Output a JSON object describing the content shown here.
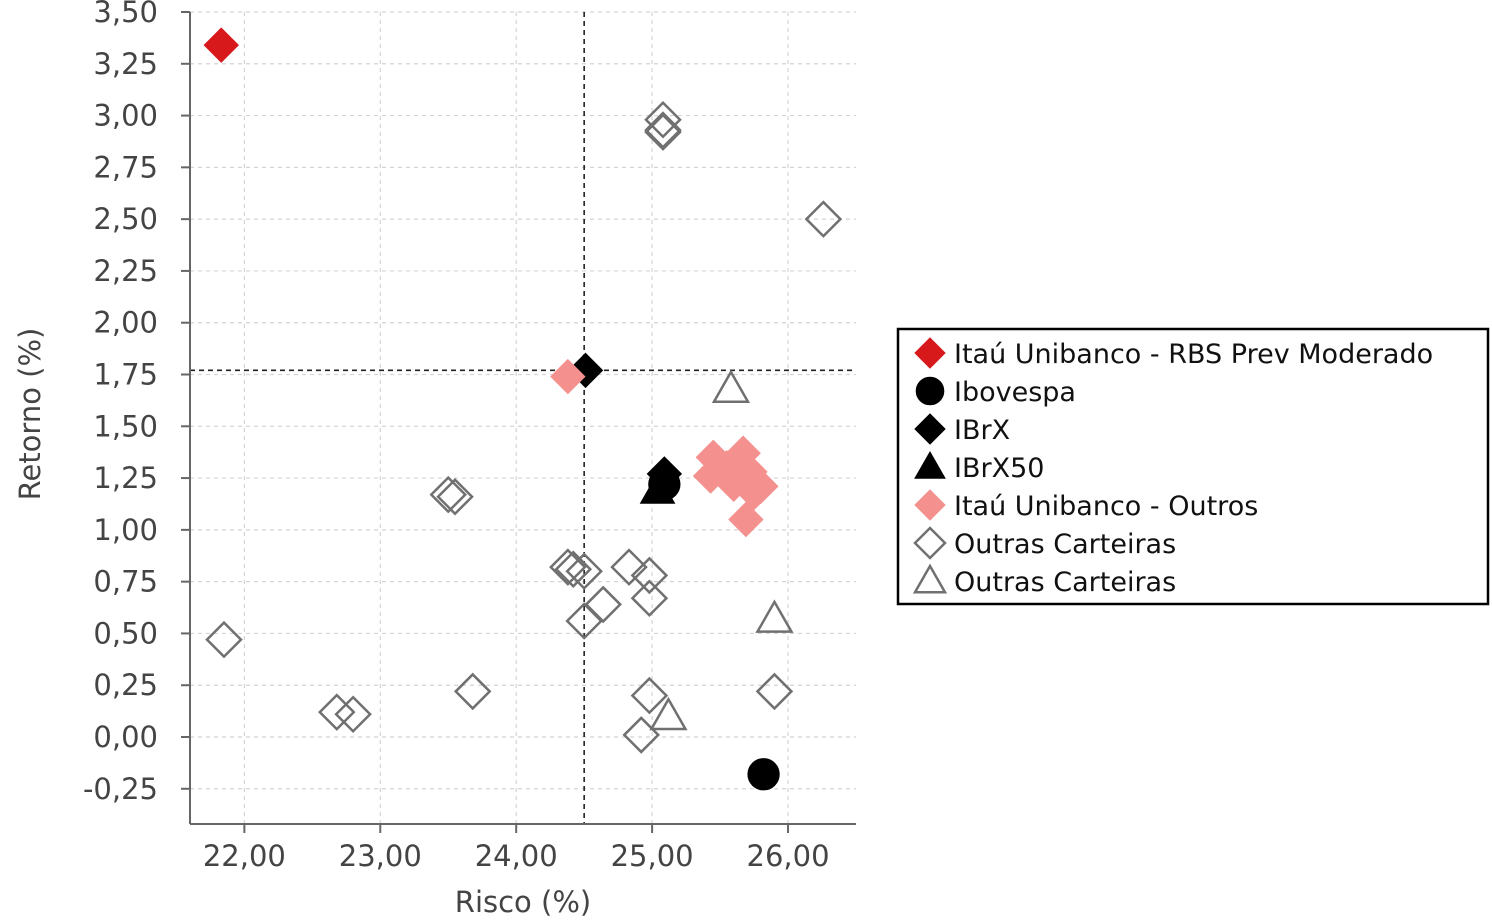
{
  "chart_data": {
    "type": "scatter",
    "title": "",
    "xlabel": "Risco (%)",
    "ylabel": "Retorno (%)",
    "xlim": [
      21.6,
      26.5
    ],
    "ylim": [
      -0.42,
      3.5
    ],
    "xticks": [
      22,
      23,
      24,
      25,
      26
    ],
    "xtick_labels": [
      "22,00",
      "23,00",
      "24,00",
      "25,00",
      "26,00"
    ],
    "yticks": [
      -0.25,
      0,
      0.25,
      0.5,
      0.75,
      1.0,
      1.25,
      1.5,
      1.75,
      2.0,
      2.25,
      2.5,
      2.75,
      3.0,
      3.25,
      3.5
    ],
    "ytick_labels": [
      "-0,25",
      "0,00",
      "0,25",
      "0,50",
      "0,75",
      "1,00",
      "1,25",
      "1,50",
      "1,75",
      "2,00",
      "2,25",
      "2,50",
      "2,75",
      "3,00",
      "3,25",
      "3,50"
    ],
    "grid": true,
    "reference_lines": {
      "x": 24.5,
      "y": 1.77
    },
    "legend_position": "right",
    "series": [
      {
        "name": "Itaú Unibanco - RBS Prev Moderado",
        "marker": "diamond",
        "filled": true,
        "color": "#d7191c",
        "points": [
          [
            21.83,
            3.34
          ]
        ]
      },
      {
        "name": "Ibovespa",
        "marker": "circle",
        "filled": true,
        "color": "#000000",
        "points": [
          [
            25.82,
            -0.18
          ],
          [
            25.09,
            1.22
          ]
        ]
      },
      {
        "name": "IBrX",
        "marker": "diamond",
        "filled": true,
        "color": "#000000",
        "points": [
          [
            24.51,
            1.77
          ],
          [
            25.09,
            1.27
          ]
        ]
      },
      {
        "name": "IBrX50",
        "marker": "triangle",
        "filled": true,
        "color": "#000000",
        "points": [
          [
            25.04,
            1.19
          ]
        ]
      },
      {
        "name": "Itaú Unibanco - Outros",
        "marker": "diamond",
        "filled": true,
        "color": "#f4918f",
        "points": [
          [
            24.38,
            1.74
          ],
          [
            25.45,
            1.35
          ],
          [
            25.43,
            1.26
          ],
          [
            25.55,
            1.3
          ],
          [
            25.67,
            1.37
          ],
          [
            25.72,
            1.28
          ],
          [
            25.75,
            1.18
          ],
          [
            25.8,
            1.21
          ],
          [
            25.69,
            1.05
          ],
          [
            25.6,
            1.22
          ]
        ]
      },
      {
        "name": "Outras Carteiras",
        "marker": "diamond",
        "filled": false,
        "color": "#707070",
        "points": [
          [
            25.08,
            2.98
          ],
          [
            25.08,
            2.93
          ],
          [
            25.08,
            2.92
          ],
          [
            26.26,
            2.5
          ],
          [
            23.5,
            1.17
          ],
          [
            23.55,
            1.16
          ],
          [
            24.38,
            0.82
          ],
          [
            24.42,
            0.81
          ],
          [
            24.5,
            0.8
          ],
          [
            24.83,
            0.82
          ],
          [
            24.98,
            0.78
          ],
          [
            24.98,
            0.67
          ],
          [
            24.64,
            0.64
          ],
          [
            24.5,
            0.56
          ],
          [
            21.85,
            0.47
          ],
          [
            23.68,
            0.22
          ],
          [
            22.68,
            0.12
          ],
          [
            22.8,
            0.11
          ],
          [
            24.98,
            0.2
          ],
          [
            24.92,
            0.01
          ],
          [
            25.9,
            0.22
          ]
        ]
      },
      {
        "name": "Outras Carteiras",
        "marker": "triangle",
        "filled": false,
        "color": "#707070",
        "points": [
          [
            25.58,
            1.68
          ],
          [
            25.9,
            0.57
          ],
          [
            25.12,
            0.1
          ]
        ]
      }
    ]
  }
}
